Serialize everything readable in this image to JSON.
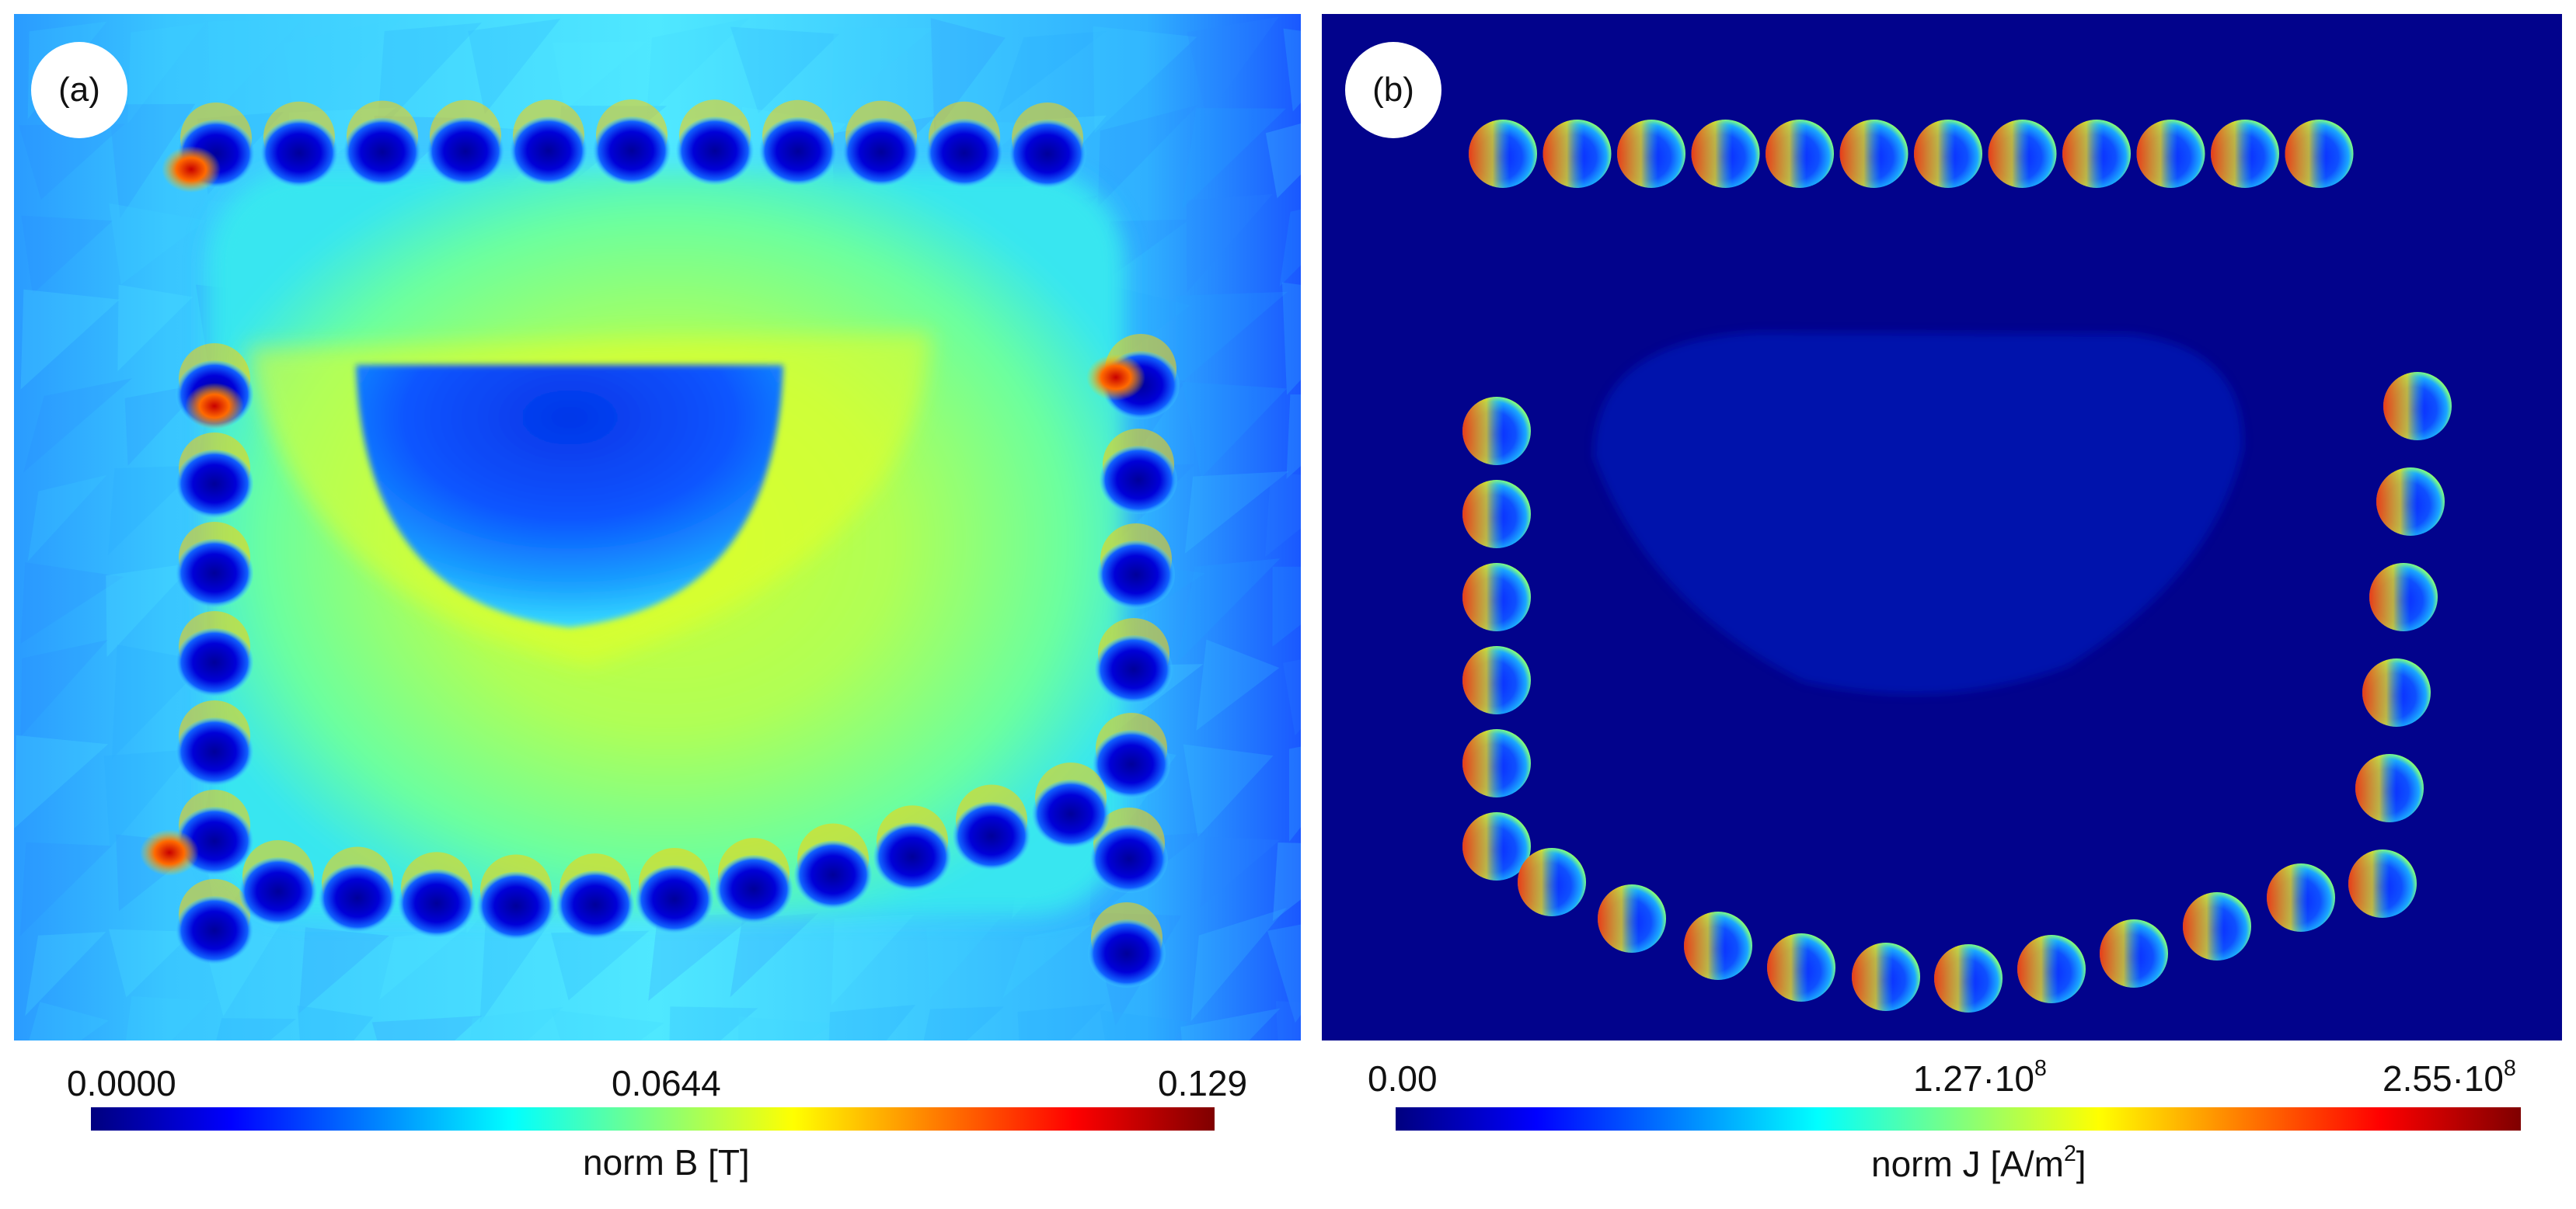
{
  "panels": [
    {
      "id": "a",
      "badge": "(a)",
      "quantity": "norm B",
      "unit": "[T]",
      "colorbar": {
        "min_label": "0.0000",
        "mid_label": "0.0644",
        "max_label": "0.129",
        "title": "norm B [T]"
      }
    },
    {
      "id": "b",
      "badge": "(b)",
      "quantity": "norm J",
      "unit": "[A/m2]",
      "colorbar": {
        "min_label": "0.00",
        "mid_mantissa": "1.27·10",
        "mid_exp": "8",
        "max_mantissa": "2.55·10",
        "max_exp": "8",
        "title_main": "norm J [A/m",
        "title_sup": "2",
        "title_end": "]"
      }
    }
  ],
  "colormap": "jet",
  "colors": {
    "background": "#ffffff",
    "panel_b_background": "#02038c",
    "jet": [
      "#00007f",
      "#0000ff",
      "#007fff",
      "#00ffff",
      "#7fff7f",
      "#ffff00",
      "#ff7f00",
      "#ff0000",
      "#7f0000"
    ]
  },
  "chart_data": [
    {
      "type": "heatmap",
      "title": "norm B [T]",
      "colorbar_range": [
        0.0,
        0.129
      ],
      "colorbar_ticks": [
        0.0,
        0.0644,
        0.129
      ],
      "colormap": "jet"
    },
    {
      "type": "heatmap",
      "title": "norm J [A/m2]",
      "colorbar_range": [
        0.0,
        255000000.0
      ],
      "colorbar_ticks": [
        0.0,
        127000000.0,
        255000000.0
      ],
      "colormap": "jet"
    }
  ]
}
